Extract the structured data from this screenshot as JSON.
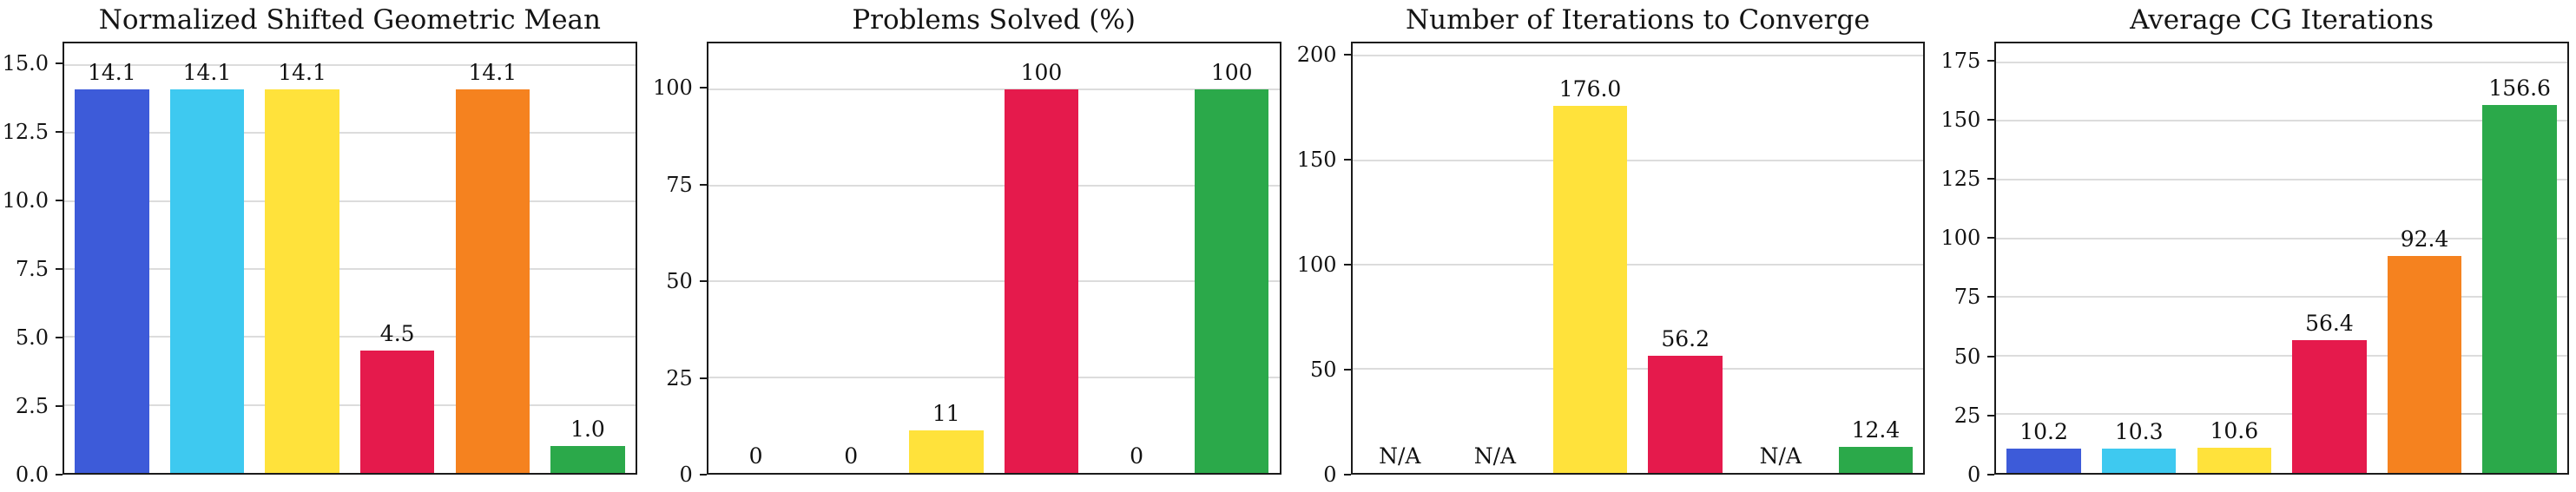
{
  "figure": {
    "background": "#ffffff",
    "palette": [
      "#3D5BD9",
      "#3EC9F0",
      "#FFE23B",
      "#E51A4C",
      "#F5821F",
      "#2BA94A"
    ],
    "grid_color": "#dcdcdc",
    "axis_color": "#1b1b1b"
  },
  "chart_data": [
    {
      "type": "bar",
      "title": "Normalized Shifted Geometric Mean",
      "categories": [
        "",
        "",
        "",
        "",
        "",
        ""
      ],
      "values": [
        14.1,
        14.1,
        14.1,
        4.5,
        14.1,
        1.0
      ],
      "bar_labels": [
        "14.1",
        "14.1",
        "14.1",
        "4.5",
        "14.1",
        "1.0"
      ],
      "colors": [
        "#3D5BD9",
        "#3EC9F0",
        "#FFE23B",
        "#E51A4C",
        "#F5821F",
        "#2BA94A"
      ],
      "xlabel": "",
      "ylabel": "",
      "ylim": [
        0,
        15.8
      ],
      "yticks": [
        0,
        2.5,
        5,
        7.5,
        10,
        12.5,
        15
      ],
      "ytick_labels": [
        "0.0",
        "2.5",
        "5.0",
        "7.5",
        "10.0",
        "12.5",
        "15.0"
      ],
      "grid": true,
      "legend": false
    },
    {
      "type": "bar",
      "title": "Problems Solved (%)",
      "categories": [
        "",
        "",
        "",
        "",
        "",
        ""
      ],
      "values": [
        0,
        0,
        11,
        100,
        0,
        100
      ],
      "bar_labels": [
        "0",
        "0",
        "11",
        "100",
        "0",
        "100"
      ],
      "colors": [
        "#3D5BD9",
        "#3EC9F0",
        "#FFE23B",
        "#E51A4C",
        "#F5821F",
        "#2BA94A"
      ],
      "xlabel": "",
      "ylabel": "",
      "ylim": [
        0,
        112
      ],
      "yticks": [
        0,
        25,
        50,
        75,
        100
      ],
      "ytick_labels": [
        "0",
        "25",
        "50",
        "75",
        "100"
      ],
      "grid": true,
      "legend": false
    },
    {
      "type": "bar",
      "title": "Number of Iterations to Converge",
      "categories": [
        "",
        "",
        "",
        "",
        "",
        ""
      ],
      "values": [
        null,
        null,
        176.0,
        56.2,
        null,
        12.4
      ],
      "bar_labels": [
        "N/A",
        "N/A",
        "176.0",
        "56.2",
        "N/A",
        "12.4"
      ],
      "colors": [
        "#3D5BD9",
        "#3EC9F0",
        "#FFE23B",
        "#E51A4C",
        "#F5821F",
        "#2BA94A"
      ],
      "xlabel": "",
      "ylabel": "",
      "ylim": [
        0,
        206
      ],
      "yticks": [
        0,
        50,
        100,
        150,
        200
      ],
      "ytick_labels": [
        "0",
        "50",
        "100",
        "150",
        "200"
      ],
      "grid": true,
      "legend": false
    },
    {
      "type": "bar",
      "title": "Average CG Iterations",
      "categories": [
        "",
        "",
        "",
        "",
        "",
        ""
      ],
      "values": [
        10.2,
        10.3,
        10.6,
        56.4,
        92.4,
        156.6
      ],
      "bar_labels": [
        "10.2",
        "10.3",
        "10.6",
        "56.4",
        "92.4",
        "156.6"
      ],
      "colors": [
        "#3D5BD9",
        "#3EC9F0",
        "#FFE23B",
        "#E51A4C",
        "#F5821F",
        "#2BA94A"
      ],
      "xlabel": "",
      "ylabel": "",
      "ylim": [
        0,
        183
      ],
      "yticks": [
        0,
        25,
        50,
        75,
        100,
        125,
        150,
        175
      ],
      "ytick_labels": [
        "0",
        "25",
        "50",
        "75",
        "100",
        "125",
        "150",
        "175"
      ],
      "grid": true,
      "legend": false
    }
  ]
}
